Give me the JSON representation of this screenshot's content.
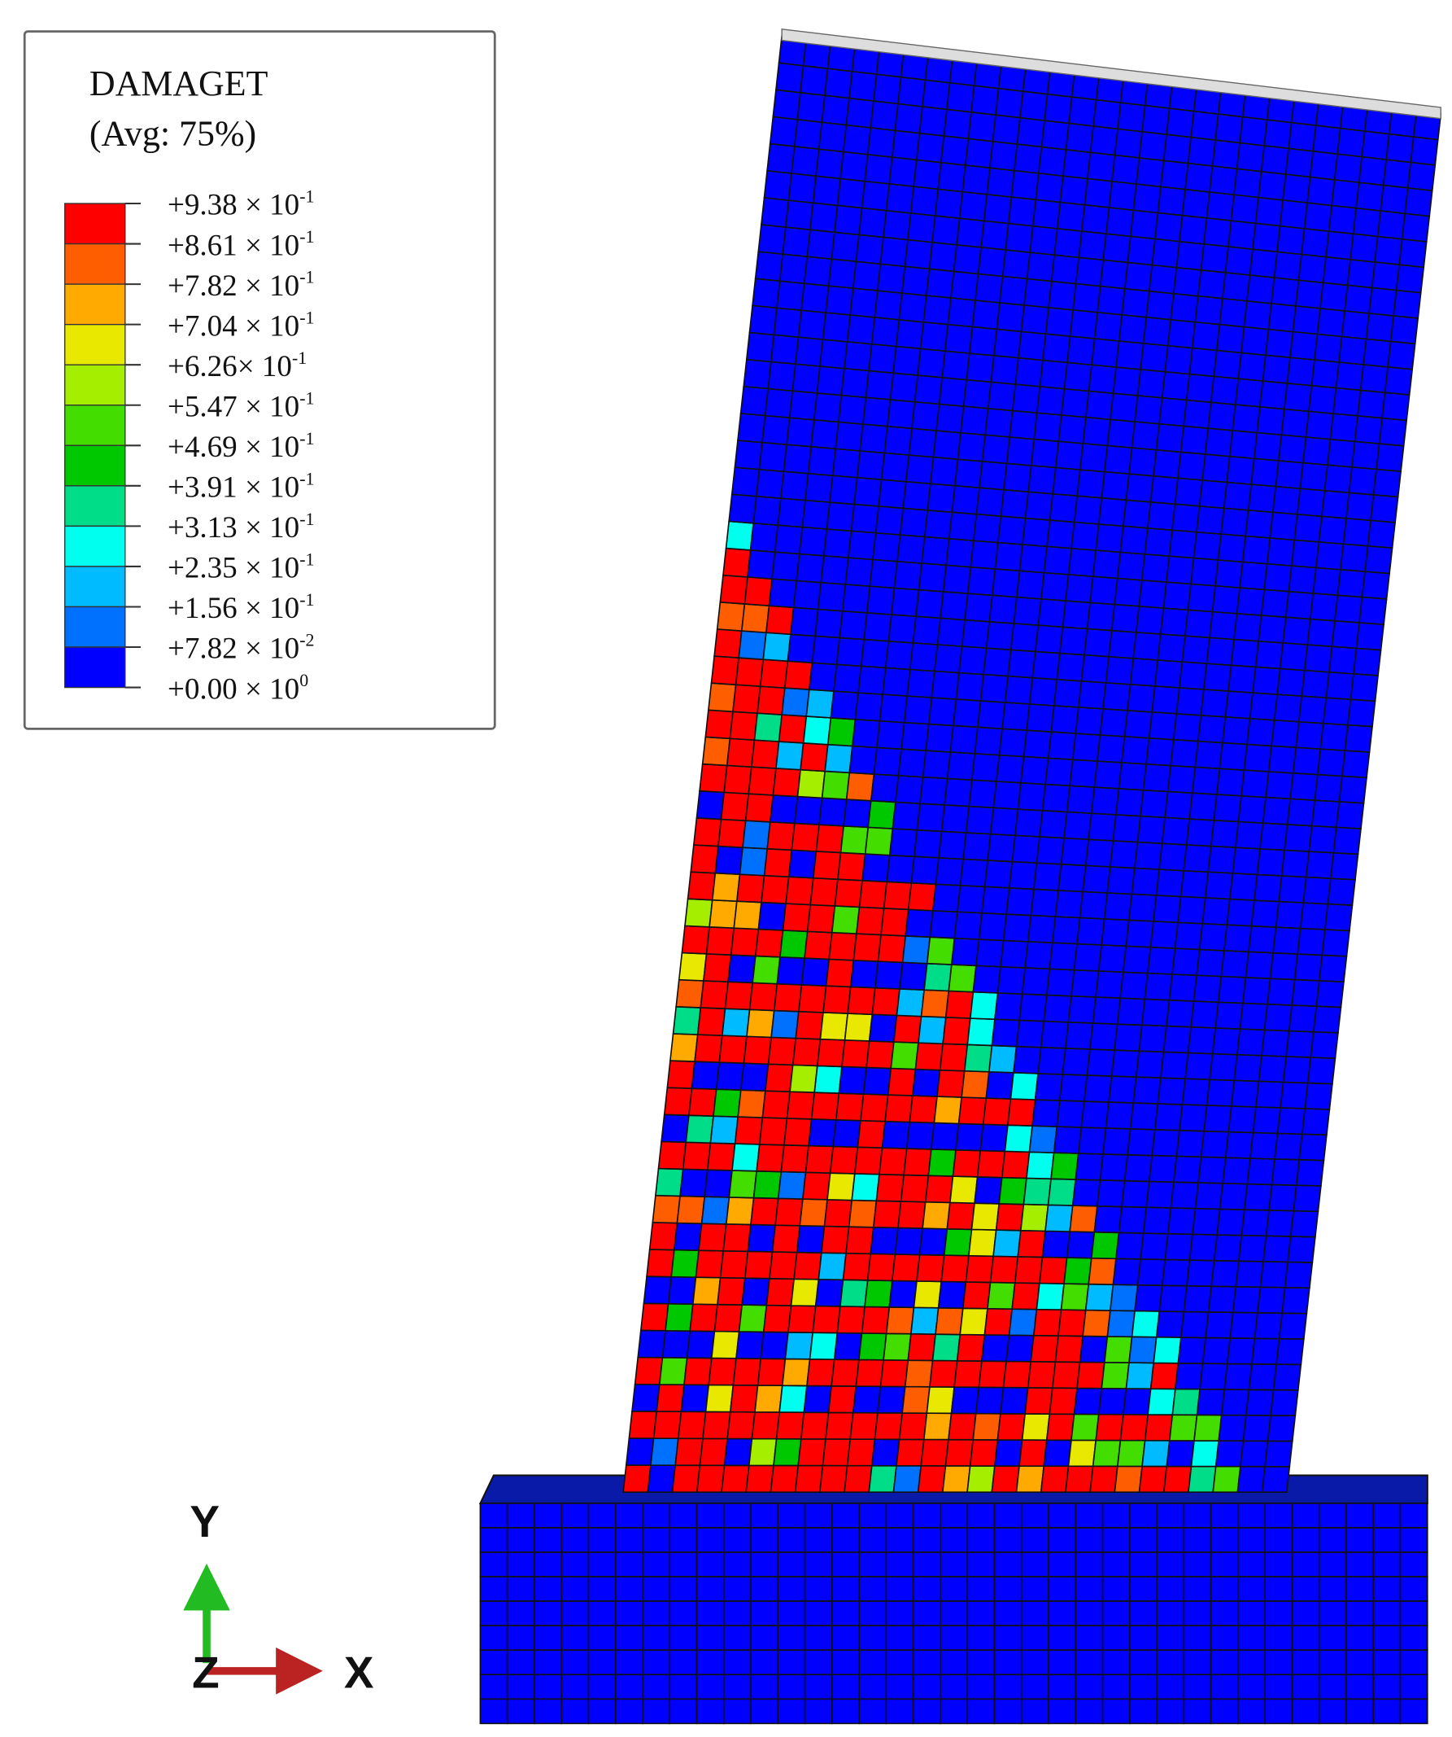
{
  "legend": {
    "title": "DAMAGET",
    "subtitle": "(Avg: 75%)",
    "colors": [
      "#ff0000",
      "#ff5e00",
      "#ffaa00",
      "#e8e800",
      "#a6ee00",
      "#44dd00",
      "#00c800",
      "#00dd88",
      "#00ffee",
      "#00bbff",
      "#0070ff",
      "#0000ff"
    ],
    "labels": [
      {
        "text": "+9.38 × 10",
        "exp": "-1"
      },
      {
        "text": "+8.61 × 10",
        "exp": "-1"
      },
      {
        "text": "+7.82 × 10",
        "exp": "-1"
      },
      {
        "text": "+7.04 × 10",
        "exp": "-1"
      },
      {
        "text": "+6.26× 10",
        "exp": "-1"
      },
      {
        "text": "+5.47 × 10",
        "exp": "-1"
      },
      {
        "text": "+4.69 × 10",
        "exp": "-1"
      },
      {
        "text": "+3.91 × 10",
        "exp": "-1"
      },
      {
        "text": "+3.13 × 10",
        "exp": "-1"
      },
      {
        "text": "+2.35 × 10",
        "exp": "-1"
      },
      {
        "text": "+1.56 × 10",
        "exp": "-1"
      },
      {
        "text": "+7.82 × 10",
        "exp": "-2"
      },
      {
        "text": "+0.00 × 10",
        "exp": "0"
      }
    ]
  },
  "triad": {
    "y": "Y",
    "z": "Z",
    "x": "X"
  }
}
